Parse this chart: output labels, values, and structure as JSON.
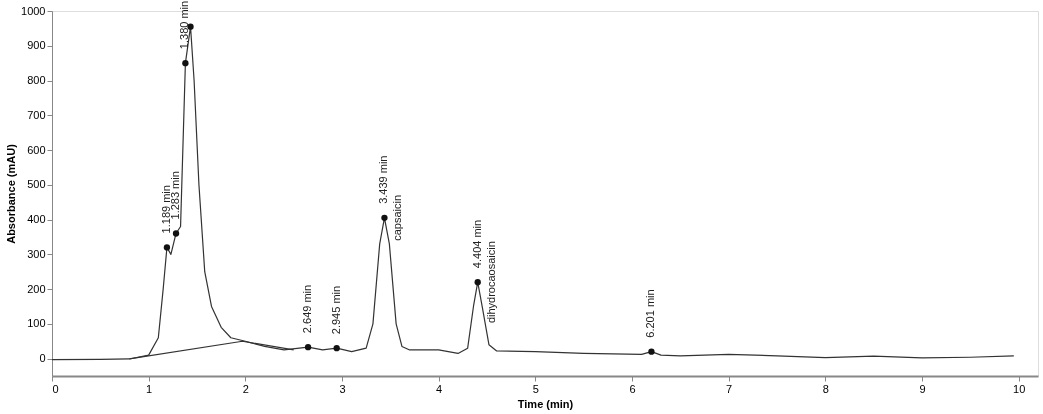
{
  "chart_data": {
    "type": "line",
    "xlabel": "Time (min)",
    "ylabel": "Absorbance (mAU)",
    "xlim": [
      0,
      10.2
    ],
    "xticks": [
      0,
      1,
      2,
      3,
      4,
      5,
      6,
      7,
      8,
      9,
      10
    ],
    "ylim": [
      -50,
      1000
    ],
    "yticks": [
      0,
      100,
      200,
      300,
      400,
      500,
      600,
      700,
      800,
      900,
      1000
    ],
    "grid": false,
    "series": [
      {
        "color": "#333333",
        "marker": "none",
        "x": [
          0,
          0.5,
          0.8,
          1.0,
          1.1,
          1.15,
          1.189,
          1.23,
          1.283,
          1.33,
          1.38,
          1.433,
          1.47,
          1.52,
          1.58,
          1.65,
          1.75,
          1.85,
          2.0,
          2.2,
          2.4,
          2.649,
          2.8,
          2.945,
          3.1,
          3.25,
          3.32,
          3.39,
          3.439,
          3.49,
          3.56,
          3.62,
          3.7,
          4.0,
          4.2,
          4.3,
          4.36,
          4.404,
          4.45,
          4.52,
          4.6,
          5.0,
          5.5,
          6.1,
          6.201,
          6.3,
          6.5,
          7.0,
          7.5,
          8.0,
          8.5,
          9.0,
          9.5,
          9.95
        ],
        "values": [
          -3,
          -2,
          -1,
          10,
          60,
          200,
          320,
          300,
          360,
          380,
          850,
          955,
          800,
          500,
          250,
          150,
          90,
          60,
          50,
          35,
          25,
          33,
          25,
          30,
          20,
          30,
          100,
          330,
          405,
          330,
          100,
          35,
          25,
          25,
          15,
          30,
          150,
          220,
          150,
          40,
          22,
          20,
          15,
          12,
          20,
          10,
          8,
          12,
          8,
          3,
          7,
          2,
          4,
          8
        ]
      },
      {
        "color": "#333333",
        "marker": "none",
        "x": [
          0.8,
          1.97,
          2.5
        ],
        "values": [
          -1,
          50,
          25
        ]
      },
      {
        "type": "scatter",
        "color": "#111111",
        "marker": "circle",
        "x": [
          1.189,
          1.283,
          1.38,
          1.433,
          2.649,
          2.945,
          3.439,
          4.404,
          6.201
        ],
        "values": [
          320,
          360,
          850,
          955,
          33,
          30,
          405,
          220,
          20
        ]
      }
    ],
    "annotations": [
      {
        "text": "1.189 min",
        "x": 1.189,
        "y": 320
      },
      {
        "text": "1.283 min",
        "x": 1.283,
        "y": 360
      },
      {
        "text": "1.380 min",
        "x": 1.38,
        "y": 850
      },
      {
        "text": "2.649 min",
        "x": 2.649,
        "y": 33
      },
      {
        "text": "2.945 min",
        "x": 2.945,
        "y": 30
      },
      {
        "text": "3.439 min",
        "x": 3.439,
        "y": 405
      },
      {
        "text": "capsaicin",
        "x": 3.439,
        "y": 405
      },
      {
        "text": "4.404 min",
        "x": 4.404,
        "y": 220
      },
      {
        "text": "dihydrocaosaicin",
        "x": 4.404,
        "y": 220
      },
      {
        "text": "6.201 min",
        "x": 6.201,
        "y": 20
      }
    ]
  }
}
